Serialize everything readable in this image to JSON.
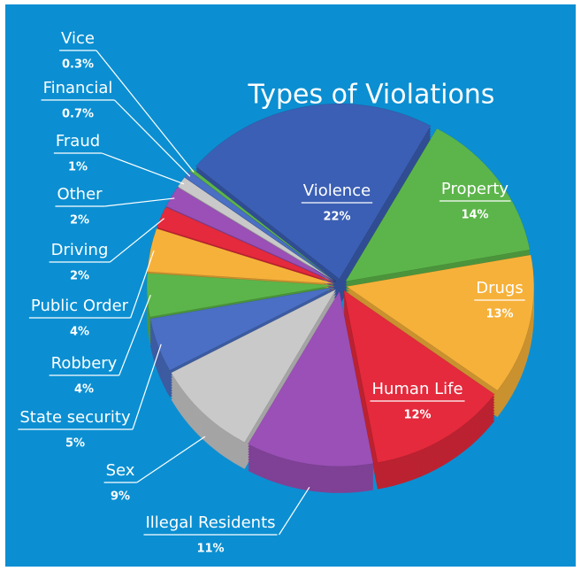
{
  "chart_data": {
    "type": "pie",
    "title": "Types of Violations",
    "categories": [
      "Violence",
      "Property",
      "Drugs",
      "Human Life",
      "Illegal Residents",
      "Sex",
      "State security",
      "Robbery",
      "Public Order",
      "Driving",
      "Other",
      "Fraud",
      "Financial",
      "Vice"
    ],
    "values": [
      22,
      14,
      13,
      12,
      11,
      9,
      5,
      4,
      4,
      2,
      2,
      1,
      0.7,
      0.3
    ],
    "value_labels": [
      "22%",
      "14%",
      "13%",
      "12%",
      "11%",
      "9%",
      "5%",
      "4%",
      "4%",
      "2%",
      "2%",
      "1%",
      "0.7%",
      "0.3%"
    ],
    "colors": [
      "#3b5fb4",
      "#5cb54a",
      "#f6b13a",
      "#e42a3c",
      "#9a50b6",
      "#c9c9c9",
      "#4a6fc4",
      "#5cb54a",
      "#f6b13a",
      "#e42a3c",
      "#9a50b6",
      "#c9c9c9",
      "#4a6fc4",
      "#5cb54a"
    ]
  }
}
